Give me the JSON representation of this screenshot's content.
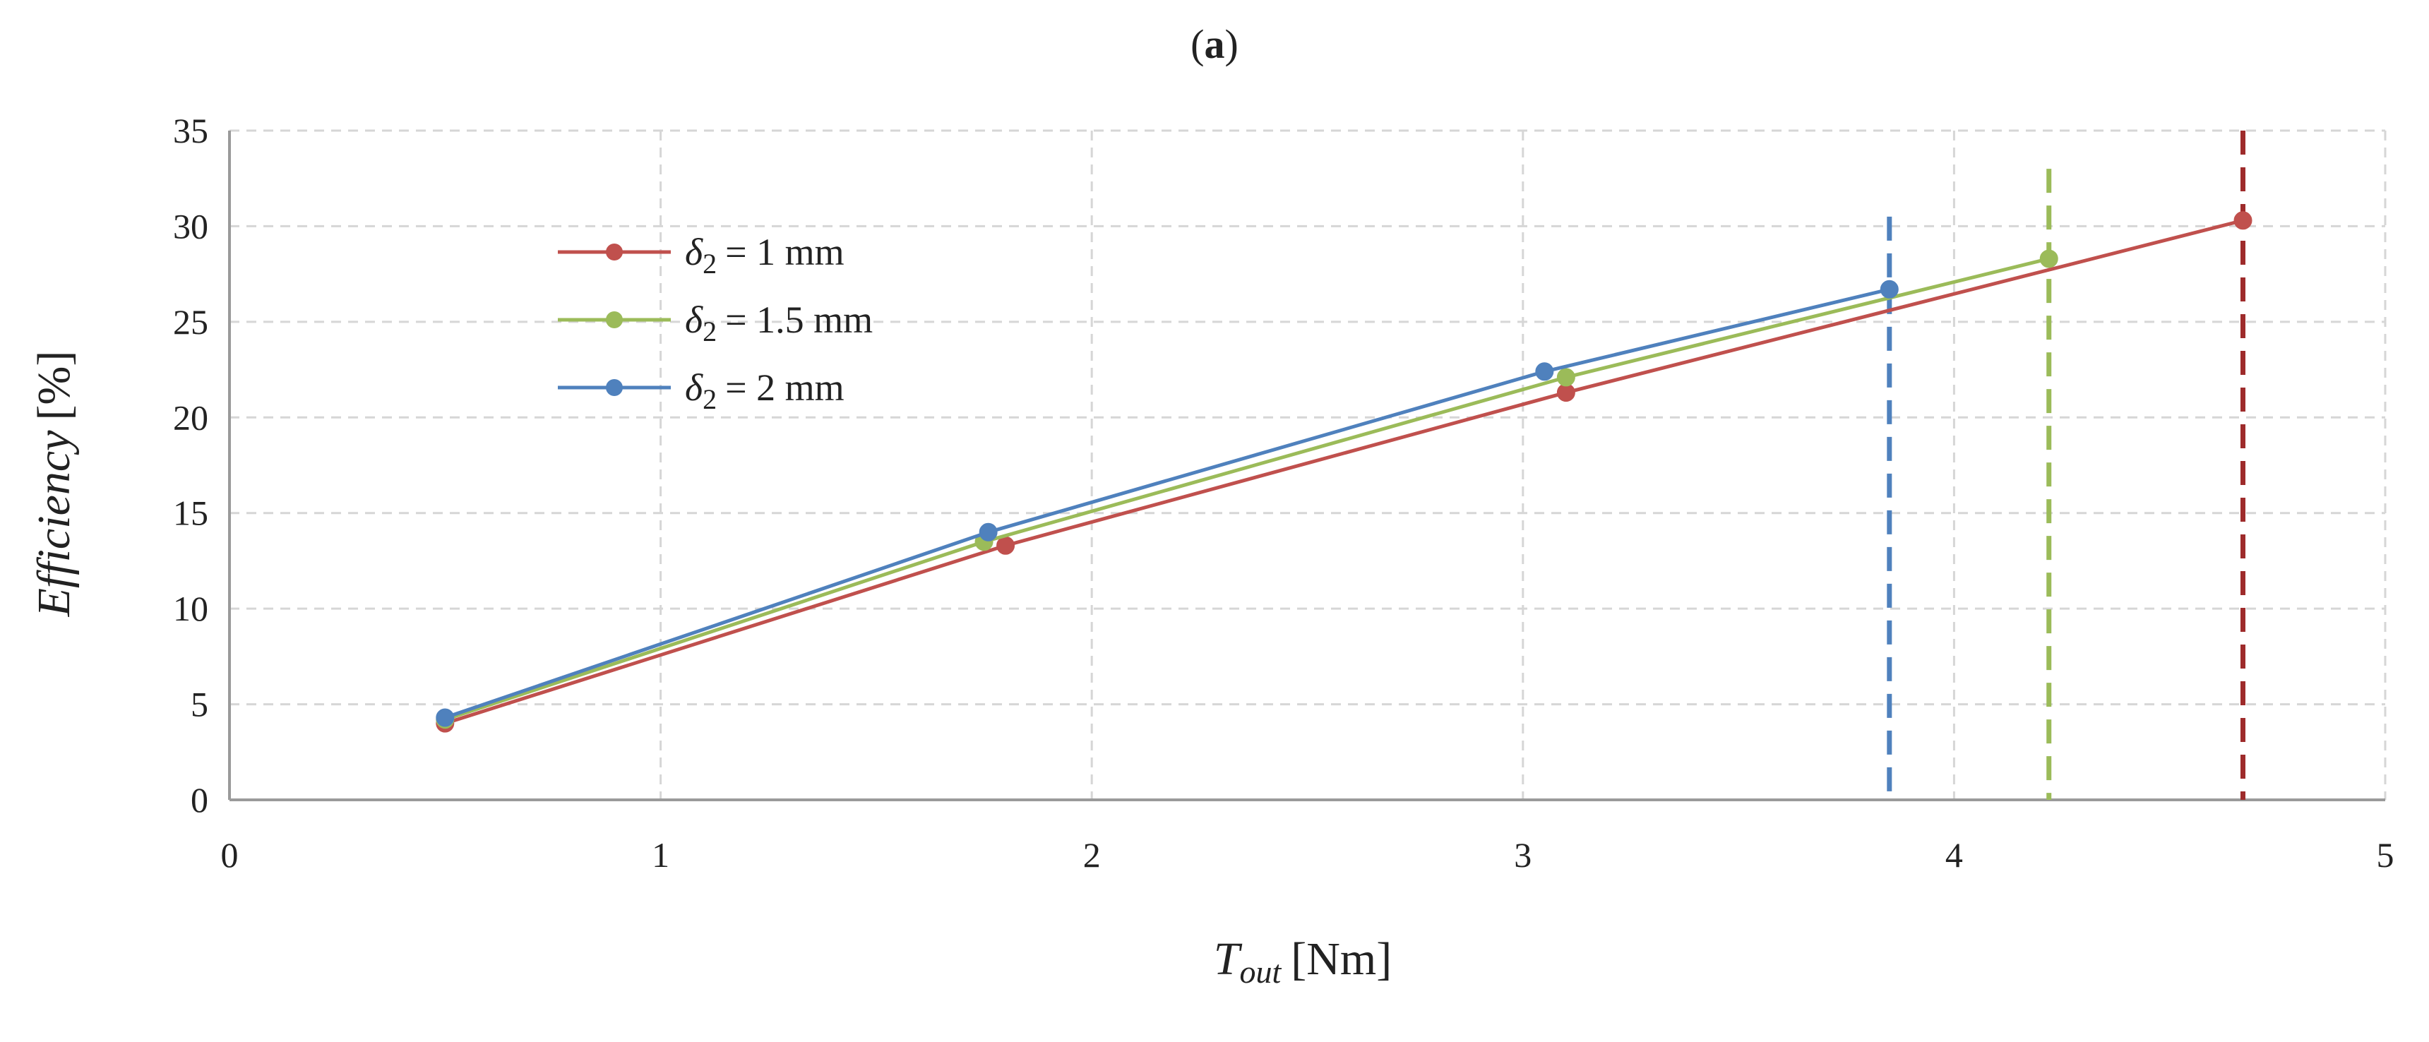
{
  "panel_label": {
    "open": "(",
    "letter": "a",
    "close": ")"
  },
  "chart_data": {
    "type": "line",
    "title": "(a)",
    "xlabel": {
      "symbol": "T",
      "subscript": "out",
      "unit": "[Nm]"
    },
    "ylabel": {
      "text": "Efficiency",
      "unit": "[%]"
    },
    "xlim": [
      0,
      5
    ],
    "ylim": [
      0,
      35
    ],
    "xticks": [
      "0",
      "1",
      "2",
      "3",
      "4",
      "5"
    ],
    "yticks": [
      "0",
      "5",
      "10",
      "15",
      "20",
      "25",
      "30",
      "35"
    ],
    "grid": true,
    "legend_position": "upper-left",
    "series": [
      {
        "name": "δ2 = 1 mm",
        "symbol": "δ",
        "subscript": "2",
        "label": "= 1 mm",
        "color": "#c0504d",
        "x": [
          0.5,
          1.8,
          3.1,
          4.67
        ],
        "y": [
          4.0,
          13.3,
          21.3,
          30.3
        ],
        "limit_x": 4.67,
        "limit_color": "#9e2b2b",
        "limit_top": 35
      },
      {
        "name": "δ2 = 1.5 mm",
        "symbol": "δ",
        "subscript": "2",
        "label": "= 1.5 mm",
        "color": "#9bbb59",
        "x": [
          0.5,
          1.75,
          3.1,
          4.22
        ],
        "y": [
          4.2,
          13.5,
          22.1,
          28.3
        ],
        "limit_x": 4.22,
        "limit_color": "#9bbb59",
        "limit_top": 33
      },
      {
        "name": "δ2 = 2 mm",
        "symbol": "δ",
        "subscript": "2",
        "label": "= 2 mm",
        "color": "#4f81bd",
        "x": [
          0.5,
          1.76,
          3.05,
          3.85
        ],
        "y": [
          4.3,
          14.0,
          22.4,
          26.7
        ],
        "limit_x": 3.85,
        "limit_color": "#4f81bd",
        "limit_top": 30.5
      }
    ]
  }
}
